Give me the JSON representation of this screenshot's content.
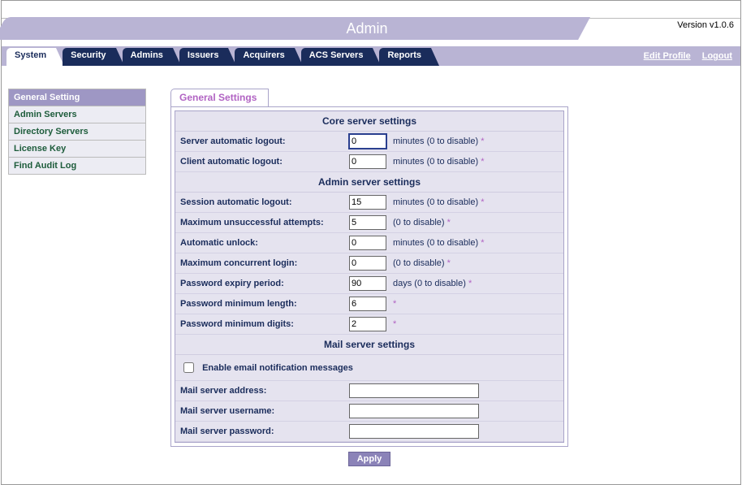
{
  "version": "Version v1.0.6",
  "header": {
    "title": "Admin"
  },
  "nav": {
    "tabs": [
      {
        "label": "System",
        "active": true
      },
      {
        "label": "Security",
        "active": false
      },
      {
        "label": "Admins",
        "active": false
      },
      {
        "label": "Issuers",
        "active": false
      },
      {
        "label": "Acquirers",
        "active": false
      },
      {
        "label": "ACS Servers",
        "active": false
      },
      {
        "label": "Reports",
        "active": false
      }
    ],
    "links": {
      "edit_profile": "Edit Profile",
      "logout": "Logout"
    }
  },
  "sidebar": {
    "items": [
      {
        "label": "General Setting",
        "active": true
      },
      {
        "label": "Admin Servers",
        "active": false
      },
      {
        "label": "Directory Servers",
        "active": false
      },
      {
        "label": "License Key",
        "active": false
      },
      {
        "label": "Find Audit Log",
        "active": false
      }
    ]
  },
  "panel": {
    "title": "General Settings",
    "sections": {
      "core": {
        "heading": "Core server settings",
        "server_logout": {
          "label": "Server automatic logout:",
          "value": "0",
          "suffix": "minutes (0 to disable)"
        },
        "client_logout": {
          "label": "Client automatic logout:",
          "value": "0",
          "suffix": "minutes (0 to disable)"
        }
      },
      "admin": {
        "heading": "Admin server settings",
        "session_logout": {
          "label": "Session automatic logout:",
          "value": "15",
          "suffix": "minutes (0 to disable)"
        },
        "max_unsuccessful": {
          "label": "Maximum unsuccessful attempts:",
          "value": "5",
          "suffix": "(0 to disable)"
        },
        "auto_unlock": {
          "label": "Automatic unlock:",
          "value": "0",
          "suffix": "minutes (0 to disable)"
        },
        "max_concurrent": {
          "label": "Maximum concurrent login:",
          "value": "0",
          "suffix": "(0 to disable)"
        },
        "pw_expiry": {
          "label": "Password expiry period:",
          "value": "90",
          "suffix": "days (0 to disable)"
        },
        "pw_min_len": {
          "label": "Password minimum length:",
          "value": "6",
          "suffix": ""
        },
        "pw_min_digits": {
          "label": "Password minimum digits:",
          "value": "2",
          "suffix": ""
        }
      },
      "mail": {
        "heading": "Mail server settings",
        "enable_label": "Enable email notification messages",
        "server_addr": {
          "label": "Mail server address:",
          "value": ""
        },
        "server_user": {
          "label": "Mail server username:",
          "value": ""
        },
        "server_pass": {
          "label": "Mail server password:",
          "value": ""
        }
      }
    },
    "apply_label": "Apply",
    "asterisk": "*"
  },
  "colors": {
    "header_band": "#b9b4d4",
    "tab_dark": "#1a2c5b",
    "sidebar_active": "#9e97c4",
    "accent_purple": "#b163c3",
    "panel_bg": "#e5e3ef"
  }
}
